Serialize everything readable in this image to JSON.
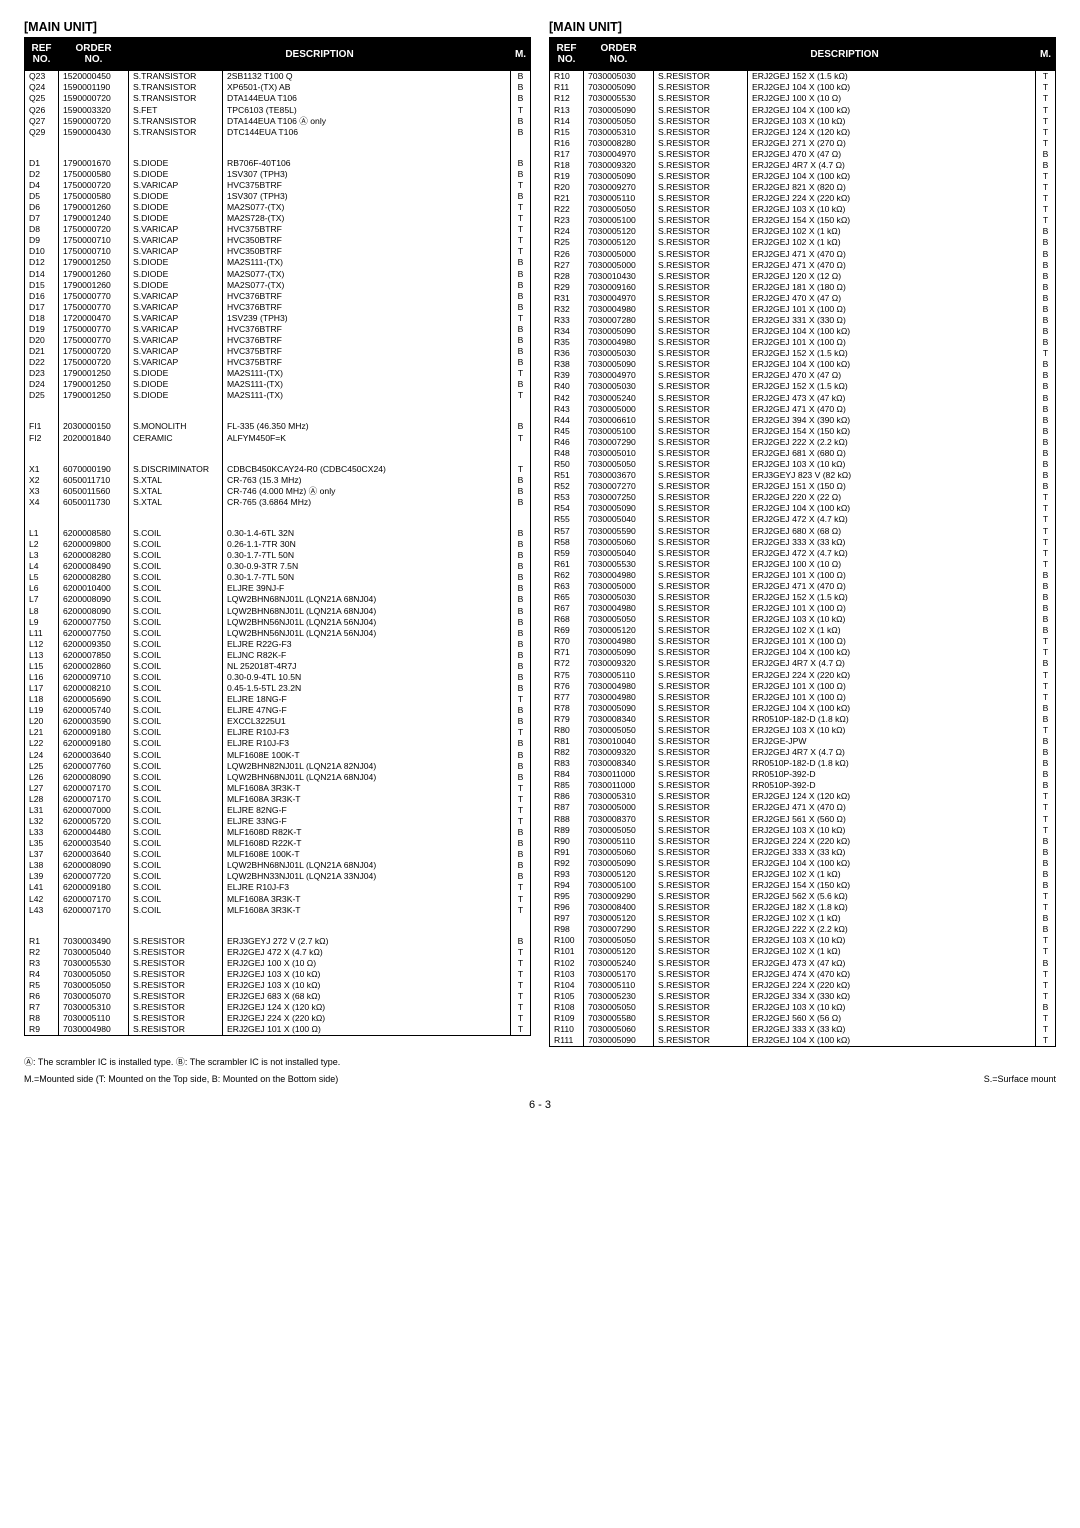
{
  "title_left": "[MAIN UNIT]",
  "title_right": "[MAIN UNIT]",
  "headers": {
    "ref": "REF\nNO.",
    "order": "ORDER\nNO.",
    "desc": "DESCRIPTION",
    "m": "M."
  },
  "col_widths": {
    "ref": 34,
    "order": 70,
    "type": 102,
    "m": 20
  },
  "left_rows": [
    [
      "Q23",
      "1520000450",
      "S.TRANSISTOR",
      "2SB1132 T100 Q",
      "B"
    ],
    [
      "Q24",
      "1590001190",
      "S.TRANSISTOR",
      "XP6501-(TX) AB",
      "B"
    ],
    [
      "Q25",
      "1590000720",
      "S.TRANSISTOR",
      "DTA144EUA T106",
      "B"
    ],
    [
      "Q26",
      "1590003320",
      "S.FET",
      "TPC6103 (TE85L)",
      "T"
    ],
    [
      "Q27",
      "1590000720",
      "S.TRANSISTOR",
      "DTA144EUA T106        Ⓐ only",
      "B"
    ],
    [
      "Q29",
      "1590000430",
      "S.TRANSISTOR",
      "DTC144EUA T106",
      "B"
    ],
    [
      "",
      "",
      "",
      "",
      ""
    ],
    [
      "",
      "",
      "",
      "",
      ""
    ],
    [
      "D1",
      "1790001670",
      "S.DIODE",
      "RB706F-40T106",
      "B"
    ],
    [
      "D2",
      "1750000580",
      "S.DIODE",
      "1SV307 (TPH3)",
      "B"
    ],
    [
      "D4",
      "1750000720",
      "S.VARICAP",
      "HVC375BTRF",
      "T"
    ],
    [
      "D5",
      "1750000580",
      "S.DIODE",
      "1SV307 (TPH3)",
      "B"
    ],
    [
      "D6",
      "1790001260",
      "S.DIODE",
      "MA2S077-(TX)",
      "T"
    ],
    [
      "D7",
      "1790001240",
      "S.DIODE",
      "MA2S728-(TX)",
      "T"
    ],
    [
      "D8",
      "1750000720",
      "S.VARICAP",
      "HVC375BTRF",
      "T"
    ],
    [
      "D9",
      "1750000710",
      "S.VARICAP",
      "HVC350BTRF",
      "T"
    ],
    [
      "D10",
      "1750000710",
      "S.VARICAP",
      "HVC350BTRF",
      "T"
    ],
    [
      "D12",
      "1790001250",
      "S.DIODE",
      "MA2S111-(TX)",
      "B"
    ],
    [
      "D14",
      "1790001260",
      "S.DIODE",
      "MA2S077-(TX)",
      "B"
    ],
    [
      "D15",
      "1790001260",
      "S.DIODE",
      "MA2S077-(TX)",
      "B"
    ],
    [
      "D16",
      "1750000770",
      "S.VARICAP",
      "HVC376BTRF",
      "B"
    ],
    [
      "D17",
      "1750000770",
      "S.VARICAP",
      "HVC376BTRF",
      "B"
    ],
    [
      "D18",
      "1720000470",
      "S.VARICAP",
      "1SV239 (TPH3)",
      "T"
    ],
    [
      "D19",
      "1750000770",
      "S.VARICAP",
      "HVC376BTRF",
      "B"
    ],
    [
      "D20",
      "1750000770",
      "S.VARICAP",
      "HVC376BTRF",
      "B"
    ],
    [
      "D21",
      "1750000720",
      "S.VARICAP",
      "HVC375BTRF",
      "B"
    ],
    [
      "D22",
      "1750000720",
      "S.VARICAP",
      "HVC375BTRF",
      "B"
    ],
    [
      "D23",
      "1790001250",
      "S.DIODE",
      "MA2S111-(TX)",
      "T"
    ],
    [
      "D24",
      "1790001250",
      "S.DIODE",
      "MA2S111-(TX)",
      "B"
    ],
    [
      "D25",
      "1790001250",
      "S.DIODE",
      "MA2S111-(TX)",
      "T"
    ],
    [
      "",
      "",
      "",
      "",
      ""
    ],
    [
      "",
      "",
      "",
      "",
      ""
    ],
    [
      "FI1",
      "2030000150",
      "S.MONOLITH",
      "FL-335 (46.350 MHz)",
      "B"
    ],
    [
      "FI2",
      "2020001840",
      "CERAMIC",
      "ALFYM450F=K",
      "T"
    ],
    [
      "",
      "",
      "",
      "",
      ""
    ],
    [
      "",
      "",
      "",
      "",
      ""
    ],
    [
      "X1",
      "6070000190",
      "S.DISCRIMINATOR",
      "CDBCB450KCAY24-R0 (CDBC450CX24)",
      "T"
    ],
    [
      "X2",
      "6050011710",
      "S.XTAL",
      "CR-763 (15.3 MHz)",
      "B"
    ],
    [
      "X3",
      "6050011560",
      "S.XTAL",
      "CR-746 (4.000 MHz)        Ⓐ only",
      "B"
    ],
    [
      "X4",
      "6050011730",
      "S.XTAL",
      "CR-765 (3.6864 MHz)",
      "B"
    ],
    [
      "",
      "",
      "",
      "",
      ""
    ],
    [
      "",
      "",
      "",
      "",
      ""
    ],
    [
      "L1",
      "6200008580",
      "S.COIL",
      "0.30-1.4-6TL 32N",
      "B"
    ],
    [
      "L2",
      "6200009800",
      "S.COIL",
      "0.26-1.1-7TR 30N",
      "B"
    ],
    [
      "L3",
      "6200008280",
      "S.COIL",
      "0.30-1.7-7TL 50N",
      "B"
    ],
    [
      "L4",
      "6200008490",
      "S.COIL",
      "0.30-0.9-3TR 7.5N",
      "B"
    ],
    [
      "L5",
      "6200008280",
      "S.COIL",
      "0.30-1.7-7TL 50N",
      "B"
    ],
    [
      "L6",
      "6200010400",
      "S.COIL",
      "ELJRE 39NJ-F",
      "B"
    ],
    [
      "L7",
      "6200008090",
      "S.COIL",
      "LQW2BHN68NJ01L (LQN21A 68NJ04)",
      "B"
    ],
    [
      "L8",
      "6200008090",
      "S.COIL",
      "LQW2BHN68NJ01L (LQN21A 68NJ04)",
      "B"
    ],
    [
      "L9",
      "6200007750",
      "S.COIL",
      "LQW2BHN56NJ01L (LQN21A 56NJ04)",
      "B"
    ],
    [
      "L11",
      "6200007750",
      "S.COIL",
      "LQW2BHN56NJ01L (LQN21A 56NJ04)",
      "B"
    ],
    [
      "L12",
      "6200009350",
      "S.COIL",
      "ELJRE R22G-F3",
      "B"
    ],
    [
      "L13",
      "6200007850",
      "S.COIL",
      "ELJNC R82K-F",
      "B"
    ],
    [
      "L15",
      "6200002860",
      "S.COIL",
      "NL 252018T-4R7J",
      "B"
    ],
    [
      "L16",
      "6200009710",
      "S.COIL",
      "0.30-0.9-4TL 10.5N",
      "B"
    ],
    [
      "L17",
      "6200008210",
      "S.COIL",
      "0.45-1.5-5TL 23.2N",
      "B"
    ],
    [
      "L18",
      "6200005690",
      "S.COIL",
      "ELJRE 18NG-F",
      "T"
    ],
    [
      "L19",
      "6200005740",
      "S.COIL",
      "ELJRE 47NG-F",
      "B"
    ],
    [
      "L20",
      "6200003590",
      "S.COIL",
      "EXCCL3225U1",
      "B"
    ],
    [
      "L21",
      "6200009180",
      "S.COIL",
      "ELJRE R10J-F3",
      "T"
    ],
    [
      "L22",
      "6200009180",
      "S.COIL",
      "ELJRE R10J-F3",
      "B"
    ],
    [
      "L24",
      "6200003640",
      "S.COIL",
      "MLF1608E 100K-T",
      "B"
    ],
    [
      "L25",
      "6200007760",
      "S.COIL",
      "LQW2BHN82NJ01L (LQN21A 82NJ04)",
      "B"
    ],
    [
      "L26",
      "6200008090",
      "S.COIL",
      "LQW2BHN68NJ01L (LQN21A 68NJ04)",
      "B"
    ],
    [
      "L27",
      "6200007170",
      "S.COIL",
      "MLF1608A 3R3K-T",
      "T"
    ],
    [
      "L28",
      "6200007170",
      "S.COIL",
      "MLF1608A 3R3K-T",
      "T"
    ],
    [
      "L31",
      "6200007000",
      "S.COIL",
      "ELJRE 82NG-F",
      "T"
    ],
    [
      "L32",
      "6200005720",
      "S.COIL",
      "ELJRE 33NG-F",
      "T"
    ],
    [
      "L33",
      "6200004480",
      "S.COIL",
      "MLF1608D R82K-T",
      "B"
    ],
    [
      "L35",
      "6200003540",
      "S.COIL",
      "MLF1608D R22K-T",
      "B"
    ],
    [
      "L37",
      "6200003640",
      "S.COIL",
      "MLF1608E 100K-T",
      "B"
    ],
    [
      "L38",
      "6200008090",
      "S.COIL",
      "LQW2BHN68NJ01L (LQN21A 68NJ04)",
      "B"
    ],
    [
      "L39",
      "6200007720",
      "S.COIL",
      "LQW2BHN33NJ01L (LQN21A 33NJ04)",
      "B"
    ],
    [
      "L41",
      "6200009180",
      "S.COIL",
      "ELJRE R10J-F3",
      "T"
    ],
    [
      "L42",
      "6200007170",
      "S.COIL",
      "MLF1608A 3R3K-T",
      "T"
    ],
    [
      "L43",
      "6200007170",
      "S.COIL",
      "MLF1608A 3R3K-T",
      "T"
    ],
    [
      "",
      "",
      "",
      "",
      ""
    ],
    [
      "",
      "",
      "",
      "",
      ""
    ],
    [
      "R1",
      "7030003490",
      "S.RESISTOR",
      "ERJ3GEYJ 272 V (2.7 kΩ)",
      "B"
    ],
    [
      "R2",
      "7030005040",
      "S.RESISTOR",
      "ERJ2GEJ 472 X (4.7 kΩ)",
      "T"
    ],
    [
      "R3",
      "7030005530",
      "S.RESISTOR",
      "ERJ2GEJ 100 X (10 Ω)",
      "T"
    ],
    [
      "R4",
      "7030005050",
      "S.RESISTOR",
      "ERJ2GEJ 103 X (10 kΩ)",
      "T"
    ],
    [
      "R5",
      "7030005050",
      "S.RESISTOR",
      "ERJ2GEJ 103 X (10 kΩ)",
      "T"
    ],
    [
      "R6",
      "7030005070",
      "S.RESISTOR",
      "ERJ2GEJ 683 X (68 kΩ)",
      "T"
    ],
    [
      "R7",
      "7030005310",
      "S.RESISTOR",
      "ERJ2GEJ 124 X (120 kΩ)",
      "T"
    ],
    [
      "R8",
      "7030005110",
      "S.RESISTOR",
      "ERJ2GEJ 224 X (220 kΩ)",
      "T"
    ],
    [
      "R9",
      "7030004980",
      "S.RESISTOR",
      "ERJ2GEJ 101 X (100 Ω)",
      "T"
    ]
  ],
  "right_rows": [
    [
      "R10",
      "7030005030",
      "S.RESISTOR",
      "ERJ2GEJ 152 X (1.5 kΩ)",
      "T"
    ],
    [
      "R11",
      "7030005090",
      "S.RESISTOR",
      "ERJ2GEJ 104 X (100 kΩ)",
      "T"
    ],
    [
      "R12",
      "7030005530",
      "S.RESISTOR",
      "ERJ2GEJ 100 X (10 Ω)",
      "T"
    ],
    [
      "R13",
      "7030005090",
      "S.RESISTOR",
      "ERJ2GEJ 104 X (100 kΩ)",
      "T"
    ],
    [
      "R14",
      "7030005050",
      "S.RESISTOR",
      "ERJ2GEJ 103 X (10 kΩ)",
      "T"
    ],
    [
      "R15",
      "7030005310",
      "S.RESISTOR",
      "ERJ2GEJ 124 X (120 kΩ)",
      "T"
    ],
    [
      "R16",
      "7030008280",
      "S.RESISTOR",
      "ERJ2GEJ 271 X (270 Ω)",
      "T"
    ],
    [
      "R17",
      "7030004970",
      "S.RESISTOR",
      "ERJ2GEJ 470 X (47 Ω)",
      "B"
    ],
    [
      "R18",
      "7030009320",
      "S.RESISTOR",
      "ERJ2GEJ 4R7 X (4.7 Ω)",
      "B"
    ],
    [
      "R19",
      "7030005090",
      "S.RESISTOR",
      "ERJ2GEJ 104 X (100 kΩ)",
      "T"
    ],
    [
      "R20",
      "7030009270",
      "S.RESISTOR",
      "ERJ2GEJ 821 X (820 Ω)",
      "T"
    ],
    [
      "R21",
      "7030005110",
      "S.RESISTOR",
      "ERJ2GEJ 224 X (220 kΩ)",
      "T"
    ],
    [
      "R22",
      "7030005050",
      "S.RESISTOR",
      "ERJ2GEJ 103 X (10 kΩ)",
      "T"
    ],
    [
      "R23",
      "7030005100",
      "S.RESISTOR",
      "ERJ2GEJ 154 X (150 kΩ)",
      "T"
    ],
    [
      "R24",
      "7030005120",
      "S.RESISTOR",
      "ERJ2GEJ 102 X (1 kΩ)",
      "B"
    ],
    [
      "R25",
      "7030005120",
      "S.RESISTOR",
      "ERJ2GEJ 102 X (1 kΩ)",
      "B"
    ],
    [
      "R26",
      "7030005000",
      "S.RESISTOR",
      "ERJ2GEJ 471 X (470 Ω)",
      "B"
    ],
    [
      "R27",
      "7030005000",
      "S.RESISTOR",
      "ERJ2GEJ 471 X (470 Ω)",
      "B"
    ],
    [
      "R28",
      "7030010430",
      "S.RESISTOR",
      "ERJ2GEJ 120 X (12 Ω)",
      "B"
    ],
    [
      "R29",
      "7030009160",
      "S.RESISTOR",
      "ERJ2GEJ 181 X (180 Ω)",
      "B"
    ],
    [
      "R31",
      "7030004970",
      "S.RESISTOR",
      "ERJ2GEJ 470 X (47 Ω)",
      "B"
    ],
    [
      "R32",
      "7030004980",
      "S.RESISTOR",
      "ERJ2GEJ 101 X (100 Ω)",
      "B"
    ],
    [
      "R33",
      "7030007280",
      "S.RESISTOR",
      "ERJ2GEJ 331 X (330 Ω)",
      "B"
    ],
    [
      "R34",
      "7030005090",
      "S.RESISTOR",
      "ERJ2GEJ 104 X (100 kΩ)",
      "B"
    ],
    [
      "R35",
      "7030004980",
      "S.RESISTOR",
      "ERJ2GEJ 101 X (100 Ω)",
      "B"
    ],
    [
      "R36",
      "7030005030",
      "S.RESISTOR",
      "ERJ2GEJ 152 X (1.5 kΩ)",
      "T"
    ],
    [
      "R38",
      "7030005090",
      "S.RESISTOR",
      "ERJ2GEJ 104 X (100 kΩ)",
      "B"
    ],
    [
      "R39",
      "7030004970",
      "S.RESISTOR",
      "ERJ2GEJ 470 X (47 Ω)",
      "B"
    ],
    [
      "R40",
      "7030005030",
      "S.RESISTOR",
      "ERJ2GEJ 152 X (1.5 kΩ)",
      "B"
    ],
    [
      "R42",
      "7030005240",
      "S.RESISTOR",
      "ERJ2GEJ 473 X (47 kΩ)",
      "B"
    ],
    [
      "R43",
      "7030005000",
      "S.RESISTOR",
      "ERJ2GEJ 471 X (470 Ω)",
      "B"
    ],
    [
      "R44",
      "7030006610",
      "S.RESISTOR",
      "ERJ2GEJ 394 X (390 kΩ)",
      "B"
    ],
    [
      "R45",
      "7030005100",
      "S.RESISTOR",
      "ERJ2GEJ 154 X (150 kΩ)",
      "B"
    ],
    [
      "R46",
      "7030007290",
      "S.RESISTOR",
      "ERJ2GEJ 222 X (2.2 kΩ)",
      "B"
    ],
    [
      "R48",
      "7030005010",
      "S.RESISTOR",
      "ERJ2GEJ 681 X (680 Ω)",
      "B"
    ],
    [
      "R50",
      "7030005050",
      "S.RESISTOR",
      "ERJ2GEJ 103 X (10 kΩ)",
      "B"
    ],
    [
      "R51",
      "7030003670",
      "S.RESISTOR",
      "ERJ3GEYJ 823 V (82 kΩ)",
      "B"
    ],
    [
      "R52",
      "7030007270",
      "S.RESISTOR",
      "ERJ2GEJ 151 X (150 Ω)",
      "B"
    ],
    [
      "R53",
      "7030007250",
      "S.RESISTOR",
      "ERJ2GEJ 220 X (22 Ω)",
      "T"
    ],
    [
      "R54",
      "7030005090",
      "S.RESISTOR",
      "ERJ2GEJ 104 X (100 kΩ)",
      "T"
    ],
    [
      "R55",
      "7030005040",
      "S.RESISTOR",
      "ERJ2GEJ 472 X (4.7 kΩ)",
      "T"
    ],
    [
      "R57",
      "7030005590",
      "S.RESISTOR",
      "ERJ2GEJ 680 X (68 Ω)",
      "T"
    ],
    [
      "R58",
      "7030005060",
      "S.RESISTOR",
      "ERJ2GEJ 333 X (33 kΩ)",
      "T"
    ],
    [
      "R59",
      "7030005040",
      "S.RESISTOR",
      "ERJ2GEJ 472 X (4.7 kΩ)",
      "T"
    ],
    [
      "R61",
      "7030005530",
      "S.RESISTOR",
      "ERJ2GEJ 100 X (10 Ω)",
      "T"
    ],
    [
      "R62",
      "7030004980",
      "S.RESISTOR",
      "ERJ2GEJ 101 X (100 Ω)",
      "B"
    ],
    [
      "R63",
      "7030005000",
      "S.RESISTOR",
      "ERJ2GEJ 471 X (470 Ω)",
      "B"
    ],
    [
      "R65",
      "7030005030",
      "S.RESISTOR",
      "ERJ2GEJ 152 X (1.5 kΩ)",
      "B"
    ],
    [
      "R67",
      "7030004980",
      "S.RESISTOR",
      "ERJ2GEJ 101 X (100 Ω)",
      "B"
    ],
    [
      "R68",
      "7030005050",
      "S.RESISTOR",
      "ERJ2GEJ 103 X (10 kΩ)",
      "B"
    ],
    [
      "R69",
      "7030005120",
      "S.RESISTOR",
      "ERJ2GEJ 102 X (1 kΩ)",
      "B"
    ],
    [
      "R70",
      "7030004980",
      "S.RESISTOR",
      "ERJ2GEJ 101 X (100 Ω)",
      "T"
    ],
    [
      "R71",
      "7030005090",
      "S.RESISTOR",
      "ERJ2GEJ 104 X (100 kΩ)",
      "T"
    ],
    [
      "R72",
      "7030009320",
      "S.RESISTOR",
      "ERJ2GEJ 4R7 X (4.7 Ω)",
      "B"
    ],
    [
      "R75",
      "7030005110",
      "S.RESISTOR",
      "ERJ2GEJ 224 X (220 kΩ)",
      "T"
    ],
    [
      "R76",
      "7030004980",
      "S.RESISTOR",
      "ERJ2GEJ 101 X (100 Ω)",
      "T"
    ],
    [
      "R77",
      "7030004980",
      "S.RESISTOR",
      "ERJ2GEJ 101 X (100 Ω)",
      "T"
    ],
    [
      "R78",
      "7030005090",
      "S.RESISTOR",
      "ERJ2GEJ 104 X (100 kΩ)",
      "B"
    ],
    [
      "R79",
      "7030008340",
      "S.RESISTOR",
      "RR0510P-182-D (1.8 kΩ)",
      "B"
    ],
    [
      "R80",
      "7030005050",
      "S.RESISTOR",
      "ERJ2GEJ 103 X (10 kΩ)",
      "T"
    ],
    [
      "R81",
      "7030010040",
      "S.RESISTOR",
      "ERJ2GE-JPW",
      "B"
    ],
    [
      "R82",
      "7030009320",
      "S.RESISTOR",
      "ERJ2GEJ 4R7 X (4.7 Ω)",
      "B"
    ],
    [
      "R83",
      "7030008340",
      "S.RESISTOR",
      "RR0510P-182-D (1.8 kΩ)",
      "B"
    ],
    [
      "R84",
      "7030011000",
      "S.RESISTOR",
      "RR0510P-392-D",
      "B"
    ],
    [
      "R85",
      "7030011000",
      "S.RESISTOR",
      "RR0510P-392-D",
      "B"
    ],
    [
      "R86",
      "7030005310",
      "S.RESISTOR",
      "ERJ2GEJ 124 X (120 kΩ)",
      "T"
    ],
    [
      "R87",
      "7030005000",
      "S.RESISTOR",
      "ERJ2GEJ 471 X (470 Ω)",
      "T"
    ],
    [
      "R88",
      "7030008370",
      "S.RESISTOR",
      "ERJ2GEJ 561 X (560 Ω)",
      "T"
    ],
    [
      "R89",
      "7030005050",
      "S.RESISTOR",
      "ERJ2GEJ 103 X (10 kΩ)",
      "T"
    ],
    [
      "R90",
      "7030005110",
      "S.RESISTOR",
      "ERJ2GEJ 224 X (220 kΩ)",
      "B"
    ],
    [
      "R91",
      "7030005060",
      "S.RESISTOR",
      "ERJ2GEJ 333 X (33 kΩ)",
      "B"
    ],
    [
      "R92",
      "7030005090",
      "S.RESISTOR",
      "ERJ2GEJ 104 X (100 kΩ)",
      "B"
    ],
    [
      "R93",
      "7030005120",
      "S.RESISTOR",
      "ERJ2GEJ 102 X (1 kΩ)",
      "B"
    ],
    [
      "R94",
      "7030005100",
      "S.RESISTOR",
      "ERJ2GEJ 154 X (150 kΩ)",
      "B"
    ],
    [
      "R95",
      "7030009290",
      "S.RESISTOR",
      "ERJ2GEJ 562 X (5.6 kΩ)",
      "T"
    ],
    [
      "R96",
      "7030008400",
      "S.RESISTOR",
      "ERJ2GEJ 182 X (1.8 kΩ)",
      "T"
    ],
    [
      "R97",
      "7030005120",
      "S.RESISTOR",
      "ERJ2GEJ 102 X (1 kΩ)",
      "B"
    ],
    [
      "R98",
      "7030007290",
      "S.RESISTOR",
      "ERJ2GEJ 222 X (2.2 kΩ)",
      "B"
    ],
    [
      "R100",
      "7030005050",
      "S.RESISTOR",
      "ERJ2GEJ 103 X (10 kΩ)",
      "T"
    ],
    [
      "R101",
      "7030005120",
      "S.RESISTOR",
      "ERJ2GEJ 102 X (1 kΩ)",
      "T"
    ],
    [
      "R102",
      "7030005240",
      "S.RESISTOR",
      "ERJ2GEJ 473 X (47 kΩ)",
      "B"
    ],
    [
      "R103",
      "7030005170",
      "S.RESISTOR",
      "ERJ2GEJ 474 X (470 kΩ)",
      "T"
    ],
    [
      "R104",
      "7030005110",
      "S.RESISTOR",
      "ERJ2GEJ 224 X (220 kΩ)",
      "T"
    ],
    [
      "R105",
      "7030005230",
      "S.RESISTOR",
      "ERJ2GEJ 334 X (330 kΩ)",
      "T"
    ],
    [
      "R108",
      "7030005050",
      "S.RESISTOR",
      "ERJ2GEJ 103 X (10 kΩ)",
      "B"
    ],
    [
      "R109",
      "7030005580",
      "S.RESISTOR",
      "ERJ2GEJ 560 X (56 Ω)",
      "T"
    ],
    [
      "R110",
      "7030005060",
      "S.RESISTOR",
      "ERJ2GEJ 333 X (33 kΩ)",
      "T"
    ],
    [
      "R111",
      "7030005090",
      "S.RESISTOR",
      "ERJ2GEJ 104 X (100 kΩ)",
      "T"
    ]
  ],
  "footnote1_a": "Ⓐ: The scrambler IC is installed type. Ⓑ: The scrambler IC is not installed type.",
  "footnote2_left": "M.=Mounted side (T: Mounted on the Top side, B: Mounted on the Bottom side)",
  "footnote2_right": "S.=Surface mount",
  "page_number": "6 - 3"
}
